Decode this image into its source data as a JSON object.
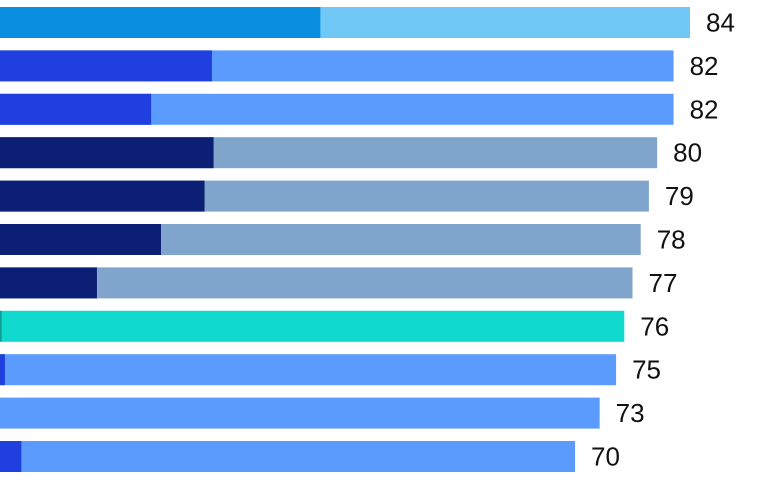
{
  "chart_data": {
    "type": "bar",
    "orientation": "horizontal",
    "stacked": true,
    "title": "",
    "xlabel": "",
    "ylabel": "",
    "xlim": [
      0,
      84
    ],
    "grid": false,
    "legend": "none",
    "bars": [
      {
        "total": 84,
        "label": "84",
        "segment": 39,
        "segment_color": "#0a8ee0",
        "rest_color": "#70c8f6"
      },
      {
        "total": 82,
        "label": "82",
        "segment": 25.8,
        "segment_color": "#1f40df",
        "rest_color": "#5b9bfe"
      },
      {
        "total": 82,
        "label": "82",
        "segment": 18.4,
        "segment_color": "#1f40df",
        "rest_color": "#5b9bfe"
      },
      {
        "total": 80,
        "label": "80",
        "segment": 26,
        "segment_color": "#0b1f74",
        "rest_color": "#7fa5cc"
      },
      {
        "total": 79,
        "label": "79",
        "segment": 24.9,
        "segment_color": "#0b1f74",
        "rest_color": "#7fa5cc"
      },
      {
        "total": 78,
        "label": "78",
        "segment": 19.6,
        "segment_color": "#0b1f74",
        "rest_color": "#7fa5cc"
      },
      {
        "total": 77,
        "label": "77",
        "segment": 11.8,
        "segment_color": "#0b1f74",
        "rest_color": "#7fa5cc"
      },
      {
        "total": 76,
        "label": "76",
        "segment": 0.2,
        "segment_color": "#0a9e94",
        "rest_color": "#0fd9cc"
      },
      {
        "total": 75,
        "label": "75",
        "segment": 0.6,
        "segment_color": "#1f40df",
        "rest_color": "#5b9bfe"
      },
      {
        "total": 73,
        "label": "73",
        "segment": 0,
        "segment_color": "#1f40df",
        "rest_color": "#5b9bfe"
      },
      {
        "total": 70,
        "label": "70",
        "segment": 2.6,
        "segment_color": "#1f40df",
        "rest_color": "#5b9bfe"
      }
    ]
  }
}
